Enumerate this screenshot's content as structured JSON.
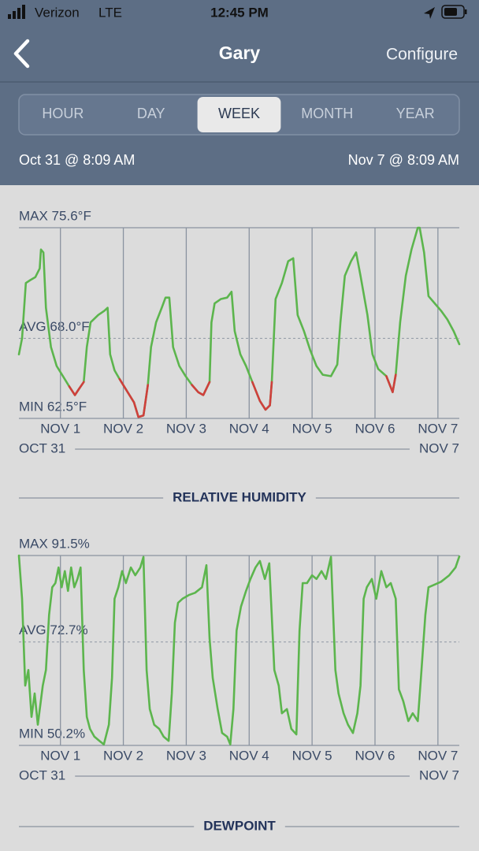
{
  "status_bar": {
    "carrier": "Verizon",
    "network": "LTE",
    "time": "12:45 PM"
  },
  "nav": {
    "title": "Gary",
    "action": "Configure"
  },
  "tabs": [
    "HOUR",
    "DAY",
    "WEEK",
    "MONTH",
    "YEAR"
  ],
  "selected_tab": 2,
  "range": {
    "start": "Oct 31 @ 8:09 AM",
    "end": "Nov 7 @ 8:09 AM"
  },
  "chart_data": [
    {
      "type": "line",
      "x": [
        0,
        0.05,
        0.11,
        0.18,
        0.26,
        0.33,
        0.35,
        0.39,
        0.43,
        0.51,
        0.6,
        0.7,
        0.8,
        0.89,
        0.95,
        1.03,
        1.08,
        1.14,
        1.26,
        1.36,
        1.41,
        1.45,
        1.52,
        1.6,
        1.7,
        1.83,
        1.9,
        1.98,
        2.05,
        2.1,
        2.18,
        2.27,
        2.33,
        2.39,
        2.45,
        2.55,
        2.65,
        2.75,
        2.85,
        2.93,
        3.03,
        3.06,
        3.11,
        3.21,
        3.31,
        3.38,
        3.43,
        3.52,
        3.61,
        3.71,
        3.83,
        3.92,
        3.99,
        4.02,
        4.08,
        4.18,
        4.28,
        4.36,
        4.43,
        4.53,
        4.63,
        4.73,
        4.83,
        4.96,
        5.06,
        5.11,
        5.18,
        5.28,
        5.36,
        5.43,
        5.54,
        5.62,
        5.71,
        5.84,
        5.94,
        5.99,
        6.06,
        6.15,
        6.24,
        6.34,
        6.37,
        6.44,
        6.51,
        6.61,
        6.71,
        6.81,
        6.91,
        7.0
      ],
      "series": [
        {
          "color": "#5cb54d",
          "values": [
            66.9,
            68.0,
            71.8,
            72.0,
            72.2,
            72.8,
            74.1,
            73.9,
            70.1,
            67.4,
            66.1,
            65.4,
            64.7,
            64.1,
            64.5,
            65.0,
            67.4,
            69.1,
            69.6,
            69.9,
            70.1,
            66.9,
            65.8,
            65.2,
            64.5,
            63.6,
            62.6,
            62.7,
            64.8,
            67.4,
            69.1,
            70.1,
            70.8,
            70.8,
            67.4,
            66.1,
            65.4,
            64.8,
            64.3,
            64.1,
            65.0,
            69.1,
            70.4,
            70.7,
            70.8,
            71.2,
            68.5,
            66.9,
            66.1,
            65.0,
            63.7,
            63.1,
            63.4,
            65.0,
            70.7,
            71.8,
            73.3,
            73.5,
            69.6,
            68.5,
            67.2,
            66.1,
            65.5,
            65.4,
            66.2,
            69.1,
            72.3,
            73.3,
            73.9,
            72.3,
            69.6,
            66.9,
            65.9,
            65.4,
            64.3,
            65.5,
            69.1,
            72.3,
            74.1,
            75.6,
            75.6,
            73.9,
            70.9,
            70.4,
            69.9,
            69.3,
            68.5,
            67.6
          ]
        },
        {
          "color": "#cf3f3c",
          "values": [
            null,
            null,
            null,
            null,
            null,
            null,
            null,
            null,
            null,
            null,
            null,
            null,
            64.7,
            64.1,
            64.5,
            65.0,
            null,
            null,
            null,
            null,
            null,
            null,
            null,
            65.2,
            64.5,
            63.6,
            62.6,
            62.7,
            64.8,
            null,
            null,
            null,
            null,
            null,
            null,
            null,
            null,
            64.8,
            64.3,
            64.1,
            65.0,
            null,
            null,
            null,
            null,
            null,
            null,
            null,
            null,
            65.0,
            63.7,
            63.1,
            63.4,
            65.0,
            null,
            null,
            null,
            null,
            null,
            null,
            null,
            null,
            null,
            null,
            null,
            null,
            null,
            null,
            null,
            null,
            null,
            null,
            null,
            65.4,
            64.3,
            65.5,
            null,
            null,
            null,
            null,
            null,
            null,
            null,
            null,
            null,
            null,
            null,
            null
          ]
        }
      ],
      "ylim": [
        62.5,
        75.6
      ],
      "yticks": [
        {
          "value": 75.6,
          "label": "MAX 75.6°F"
        },
        {
          "value": 68.0,
          "label": "AVG 68.0°F"
        },
        {
          "value": 62.5,
          "label": "MIN 62.5°F"
        }
      ],
      "xlim": [
        0,
        7
      ],
      "xticks": [
        {
          "value": 0.66,
          "label": "NOV 1"
        },
        {
          "value": 1.66,
          "label": "NOV 2"
        },
        {
          "value": 2.66,
          "label": "NOV 3"
        },
        {
          "value": 3.66,
          "label": "NOV 4"
        },
        {
          "value": 4.66,
          "label": "NOV 5"
        },
        {
          "value": 5.66,
          "label": "NOV 6"
        },
        {
          "value": 6.66,
          "label": "NOV 7"
        }
      ],
      "x_range_labels": [
        "OCT 31",
        "NOV 7"
      ]
    },
    {
      "type": "line",
      "title": "RELATIVE HUMIDITY",
      "x": [
        0,
        0.05,
        0.1,
        0.15,
        0.2,
        0.25,
        0.3,
        0.38,
        0.43,
        0.48,
        0.53,
        0.58,
        0.63,
        0.68,
        0.73,
        0.78,
        0.83,
        0.88,
        0.93,
        0.98,
        1.03,
        1.08,
        1.13,
        1.2,
        1.28,
        1.35,
        1.43,
        1.48,
        1.52,
        1.58,
        1.64,
        1.7,
        1.78,
        1.85,
        1.93,
        1.98,
        2.03,
        2.08,
        2.15,
        2.23,
        2.3,
        2.38,
        2.43,
        2.48,
        2.53,
        2.6,
        2.7,
        2.8,
        2.91,
        2.98,
        3.03,
        3.08,
        3.16,
        3.23,
        3.31,
        3.36,
        3.41,
        3.46,
        3.53,
        3.61,
        3.68,
        3.76,
        3.83,
        3.91,
        3.98,
        4.06,
        4.13,
        4.18,
        4.26,
        4.33,
        4.41,
        4.46,
        4.51,
        4.58,
        4.66,
        4.73,
        4.81,
        4.88,
        4.96,
        5.03,
        5.08,
        5.16,
        5.23,
        5.31,
        5.38,
        5.43,
        5.48,
        5.53,
        5.61,
        5.68,
        5.76,
        5.84,
        5.91,
        5.99,
        6.04,
        6.11,
        6.19,
        6.26,
        6.34,
        6.39,
        6.46,
        6.51,
        6.61,
        6.71,
        6.84,
        6.94,
        7.0
      ],
      "series": [
        {
          "color": "#5cb54d",
          "values": [
            91.5,
            82.1,
            63.2,
            66.6,
            56.4,
            61.5,
            54.7,
            63.2,
            66.6,
            78.6,
            84.6,
            85.5,
            88.9,
            84.6,
            88.1,
            83.8,
            88.9,
            84.6,
            86.4,
            88.9,
            66.6,
            56.4,
            53.8,
            52.1,
            51.2,
            50.4,
            54.7,
            64.9,
            82.1,
            84.6,
            88.1,
            85.5,
            88.9,
            87.2,
            88.9,
            91.2,
            66.6,
            58.1,
            54.7,
            53.8,
            52.1,
            51.2,
            61.5,
            76.9,
            81.2,
            82.1,
            82.9,
            83.4,
            84.6,
            89.4,
            73.5,
            64.9,
            58.1,
            52.9,
            52.1,
            50.4,
            58.1,
            75.2,
            80.4,
            83.8,
            86.4,
            88.9,
            90.3,
            86.4,
            89.8,
            66.6,
            63.2,
            57.2,
            58.1,
            53.8,
            52.6,
            75.2,
            85.5,
            85.5,
            87.2,
            86.4,
            88.1,
            86.4,
            91.2,
            66.6,
            61.5,
            57.2,
            54.7,
            52.9,
            57.2,
            63.2,
            82.1,
            84.6,
            86.4,
            82.1,
            88.1,
            84.6,
            85.5,
            82.1,
            62.4,
            59.8,
            55.5,
            57.2,
            55.5,
            64.9,
            78.6,
            84.6,
            85.2,
            85.8,
            87.2,
            88.9,
            91.3
          ]
        }
      ],
      "ylim": [
        50.2,
        91.5
      ],
      "yticks": [
        {
          "value": 91.5,
          "label": "MAX 91.5%"
        },
        {
          "value": 72.7,
          "label": "AVG 72.7%"
        },
        {
          "value": 50.2,
          "label": "MIN 50.2%"
        }
      ],
      "xlim": [
        0,
        7
      ],
      "xticks": [
        {
          "value": 0.66,
          "label": "NOV 1"
        },
        {
          "value": 1.66,
          "label": "NOV 2"
        },
        {
          "value": 2.66,
          "label": "NOV 3"
        },
        {
          "value": 3.66,
          "label": "NOV 4"
        },
        {
          "value": 4.66,
          "label": "NOV 5"
        },
        {
          "value": 5.66,
          "label": "NOV 6"
        },
        {
          "value": 6.66,
          "label": "NOV 7"
        }
      ],
      "x_range_labels": [
        "OCT 31",
        "NOV 7"
      ]
    }
  ],
  "next_section": "DEWPOINT"
}
